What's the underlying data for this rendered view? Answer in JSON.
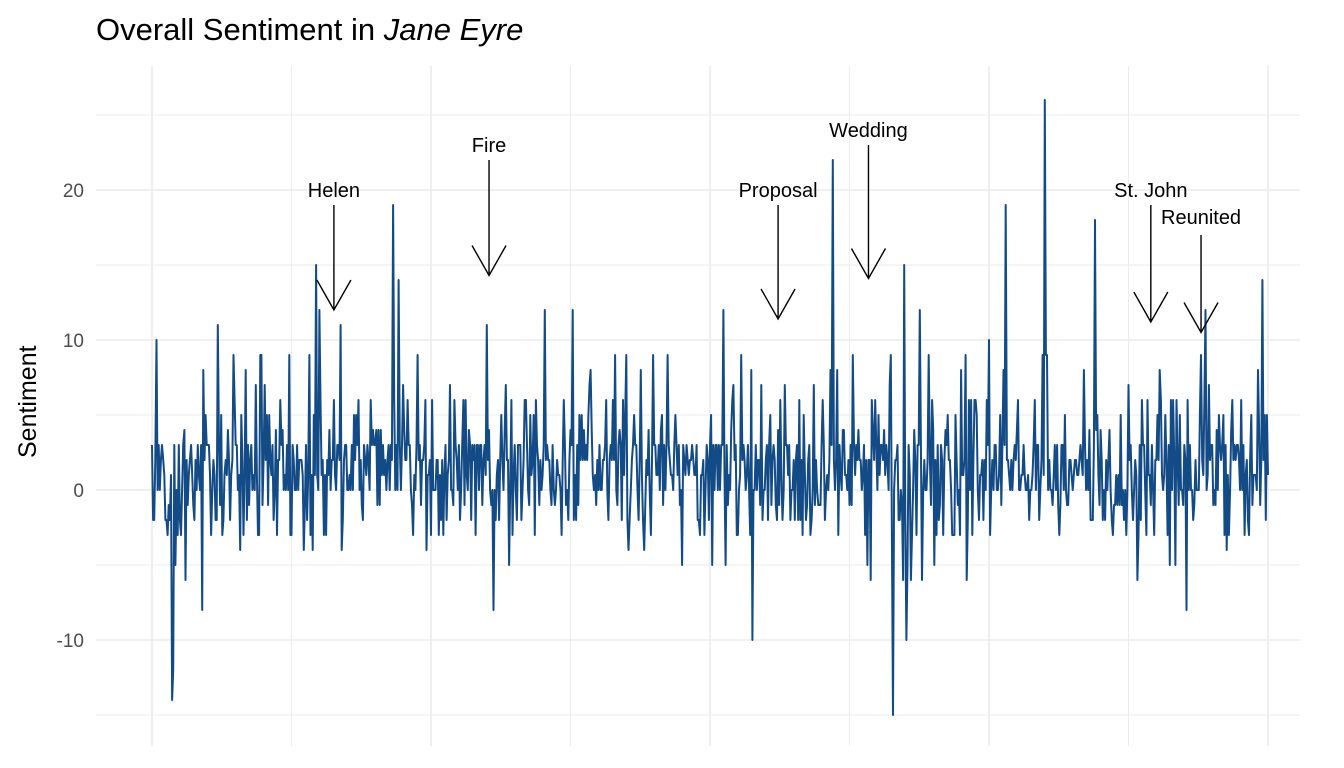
{
  "chart_data": {
    "type": "line",
    "title_prefix": "Overall Sentiment in ",
    "title_italic": "Jane Eyre",
    "xlabel": "",
    "ylabel": "Sentiment",
    "xlim": [
      0,
      1000
    ],
    "ylim": [
      -15.5,
      26.5
    ],
    "y_ticks": [
      -10,
      0,
      10,
      20
    ],
    "x_ticks_labels": [],
    "grid": true,
    "line_color": "#134b86",
    "peaks": [
      {
        "x": 4,
        "y": 10
      },
      {
        "x": 18,
        "y": -14
      },
      {
        "x": 19,
        "y": -12
      },
      {
        "x": 45,
        "y": -8
      },
      {
        "x": 59,
        "y": 11
      },
      {
        "x": 150,
        "y": 12
      },
      {
        "x": 147,
        "y": 15
      },
      {
        "x": 169,
        "y": 11
      },
      {
        "x": 216,
        "y": 19
      },
      {
        "x": 221,
        "y": 14
      },
      {
        "x": 300,
        "y": 11
      },
      {
        "x": 306,
        "y": -8
      },
      {
        "x": 352,
        "y": 12
      },
      {
        "x": 377,
        "y": 12
      },
      {
        "x": 512,
        "y": 12
      },
      {
        "x": 538,
        "y": -10
      },
      {
        "x": 610,
        "y": 22
      },
      {
        "x": 664,
        "y": -15
      },
      {
        "x": 674,
        "y": 15
      },
      {
        "x": 676,
        "y": -10
      },
      {
        "x": 688,
        "y": 12
      },
      {
        "x": 750,
        "y": 10
      },
      {
        "x": 765,
        "y": 19
      },
      {
        "x": 800,
        "y": 26
      },
      {
        "x": 845,
        "y": 18
      },
      {
        "x": 944,
        "y": 12
      },
      {
        "x": 927,
        "y": -8
      },
      {
        "x": 995,
        "y": 14
      },
      {
        "x": 730,
        "y": -6
      },
      {
        "x": 1000,
        "y": 1
      }
    ],
    "annotations": [
      {
        "label": "Helen",
        "x": 163,
        "text_y": 20,
        "from_y": 19,
        "to_y": 12
      },
      {
        "label": "Fire",
        "x": 302,
        "text_y": 23,
        "from_y": 22,
        "to_y": 14.3
      },
      {
        "label": "Proposal",
        "x": 561,
        "text_y": 20,
        "from_y": 19,
        "to_y": 11.4
      },
      {
        "label": "Wedding",
        "x": 642,
        "text_y": 24,
        "from_y": 23,
        "to_y": 14.1
      },
      {
        "label": "St. John",
        "x": 895,
        "text_y": 20,
        "from_y": 19,
        "to_y": 11.2
      },
      {
        "label": "Reunited",
        "x": 940,
        "text_y": 18.2,
        "from_y": 17,
        "to_y": 10.5
      }
    ]
  }
}
